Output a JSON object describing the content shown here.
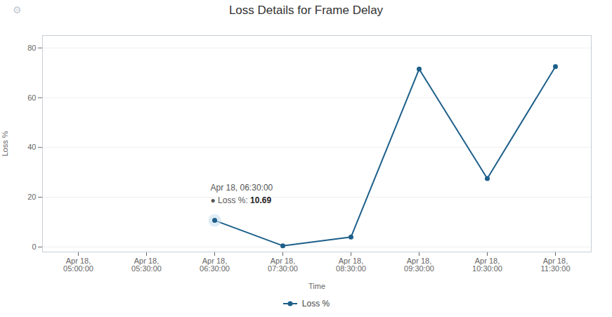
{
  "chart_data": {
    "type": "line",
    "title": "Loss Details for Frame Delay",
    "xlabel": "Time",
    "ylabel": "Loss %",
    "categories": [
      "Apr 18,\n05:00:00",
      "Apr 18,\n05:30:00",
      "Apr 18,\n06:30:00",
      "Apr 18,\n07:30:00",
      "Apr 18,\n08:30:00",
      "Apr 18,\n09:30:00",
      "Apr 18,\n10:30:00",
      "Apr 18,\n11:30:00"
    ],
    "series": [
      {
        "name": "Loss %",
        "color": "#1d5f8a",
        "marker": "o",
        "values": [
          null,
          null,
          10.69,
          0.5,
          4.0,
          71.5,
          27.5,
          72.5
        ]
      }
    ],
    "ylim": [
      -2,
      85
    ],
    "yticks": [
      0,
      20,
      40,
      60,
      80
    ],
    "grid": true,
    "legend": "bottom",
    "annotations": [
      {
        "text": "⚙"
      },
      {
        "x": "Apr 18,\n06:30:00",
        "y": 10.69,
        "text": "Apr 18, 06:30:00",
        "label": "● Loss %: ",
        "value": "10.69"
      }
    ]
  }
}
